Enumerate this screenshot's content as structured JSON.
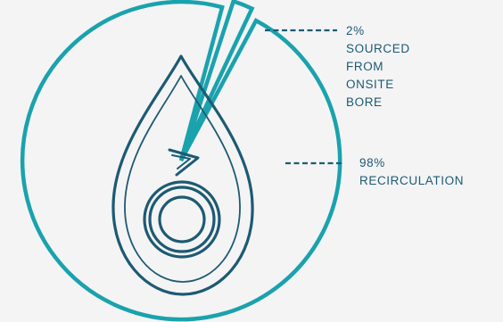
{
  "chart_data": {
    "type": "pie",
    "slices": [
      {
        "label_lines": [
          "2%",
          "SOURCED",
          "FROM",
          "ONSITE",
          "BORE"
        ],
        "value": 2
      },
      {
        "label_lines": [
          "98%",
          "RECIRCULATION"
        ],
        "value": 98
      }
    ],
    "legend": "none",
    "icon": "water-drop-recirculation-icon"
  },
  "colors": {
    "pie_stroke": "#1aa2ad",
    "drop_stroke": "#1d5a73",
    "leader_line": "#1d5a73",
    "label_text": "#1d5a73",
    "background": "#f4f4f5"
  }
}
